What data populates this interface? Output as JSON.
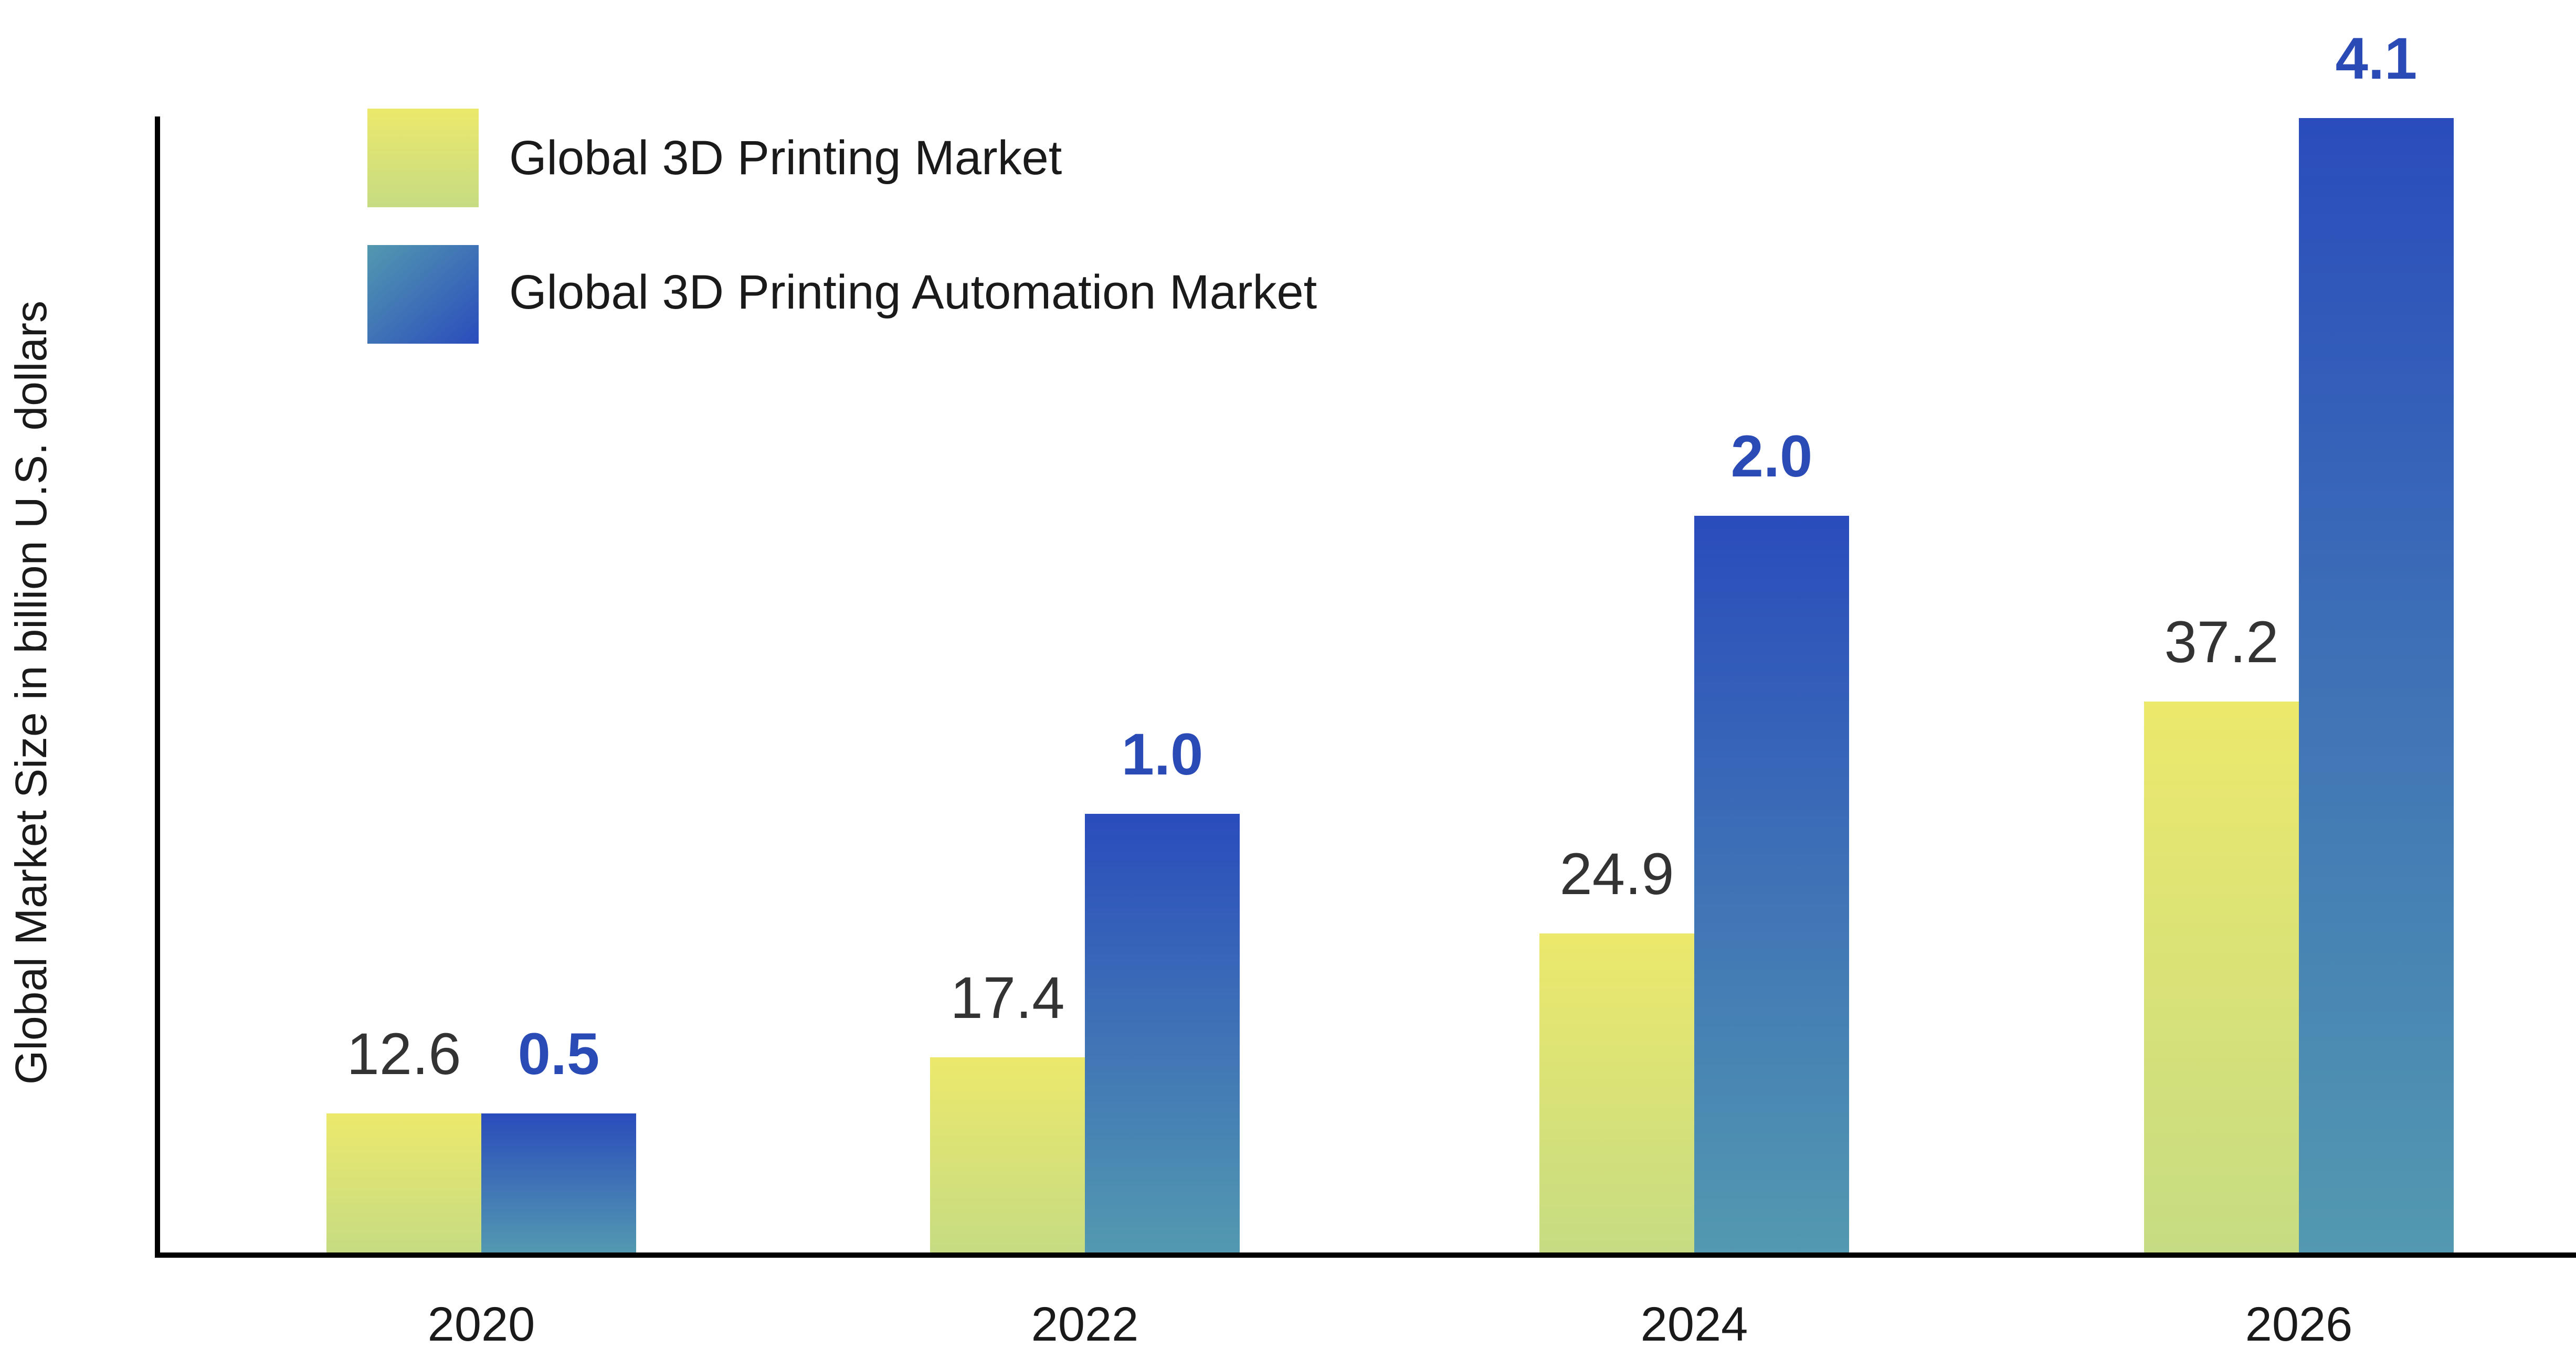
{
  "colors": {
    "series_a_top": "#ece86c",
    "series_a_bottom": "#c6dc82",
    "series_b_top": "#2a4cbc",
    "series_b_bottom": "#5399b0",
    "axis": "#000000",
    "value_label_b": "#2a4ab5",
    "value_label_a": "#333333"
  },
  "chart_data": {
    "type": "bar",
    "title": "",
    "xlabel": "",
    "ylabel": "Global Market Size in billion U.S. dollars",
    "categories": [
      "2020",
      "2022",
      "2024",
      "2026"
    ],
    "series": [
      {
        "name": "Global 3D Printing Market",
        "values": [
          12.6,
          17.4,
          24.9,
          37.2
        ],
        "labels": [
          "12.6",
          "17.4",
          "24.9",
          "37.2"
        ]
      },
      {
        "name": "Global 3D Printing Automation Market",
        "values": [
          0.5,
          1.0,
          2.0,
          4.1
        ],
        "labels": [
          "0.5",
          "1.0",
          "2.0",
          "4.1"
        ]
      }
    ],
    "legend_position": "top-left",
    "grid": false,
    "y_ticks_shown": false
  }
}
